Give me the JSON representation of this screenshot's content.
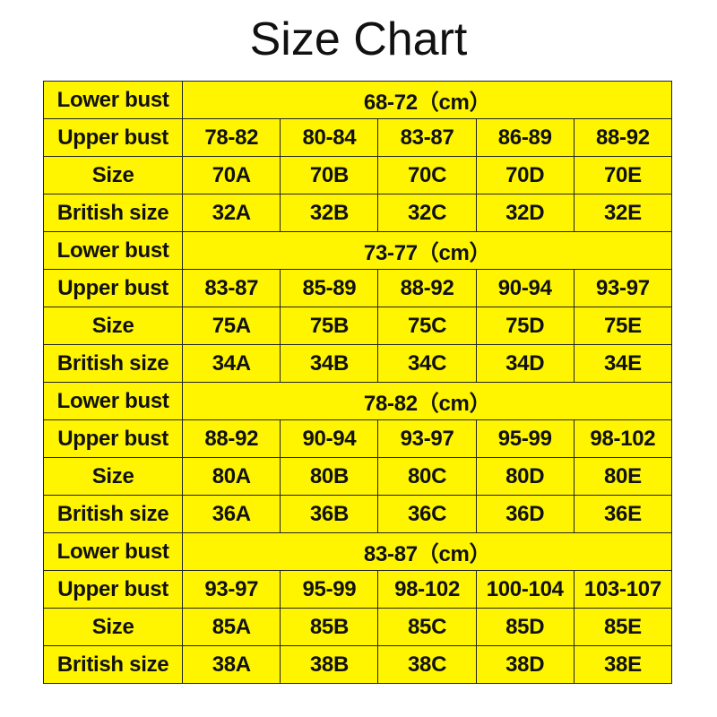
{
  "title": "Size Chart",
  "colors": {
    "cell_background": "#FFF500",
    "border": "#222222",
    "text": "#111111"
  },
  "row_labels": {
    "lower": "Lower bust",
    "upper": "Upper bust",
    "size": "Size",
    "british": "British size"
  },
  "groups": [
    {
      "lower_bust": "68-72（cm）",
      "upper_bust": [
        "78-82",
        "80-84",
        "83-87",
        "86-89",
        "88-92"
      ],
      "size": [
        "70A",
        "70B",
        "70C",
        "70D",
        "70E"
      ],
      "british_size": [
        "32A",
        "32B",
        "32C",
        "32D",
        "32E"
      ]
    },
    {
      "lower_bust": "73-77（cm）",
      "upper_bust": [
        "83-87",
        "85-89",
        "88-92",
        "90-94",
        "93-97"
      ],
      "size": [
        "75A",
        "75B",
        "75C",
        "75D",
        "75E"
      ],
      "british_size": [
        "34A",
        "34B",
        "34C",
        "34D",
        "34E"
      ]
    },
    {
      "lower_bust": "78-82（cm）",
      "upper_bust": [
        "88-92",
        "90-94",
        "93-97",
        "95-99",
        "98-102"
      ],
      "size": [
        "80A",
        "80B",
        "80C",
        "80D",
        "80E"
      ],
      "british_size": [
        "36A",
        "36B",
        "36C",
        "36D",
        "36E"
      ]
    },
    {
      "lower_bust": "83-87（cm）",
      "upper_bust": [
        "93-97",
        "95-99",
        "98-102",
        "100-104",
        "103-107"
      ],
      "size": [
        "85A",
        "85B",
        "85C",
        "85D",
        "85E"
      ],
      "british_size": [
        "38A",
        "38B",
        "38C",
        "38D",
        "38E"
      ]
    }
  ]
}
